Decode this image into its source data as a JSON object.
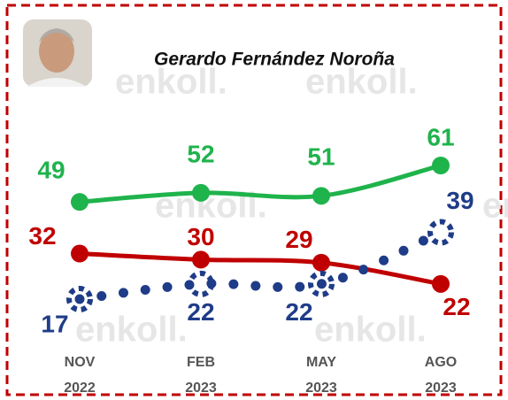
{
  "chart_data": {
    "type": "line",
    "title": "Gerardo Fernández Noroña",
    "watermark": "enkoll.",
    "categories": [
      [
        "NOV",
        "2022"
      ],
      [
        "FEB",
        "2023"
      ],
      [
        "MAY",
        "2023"
      ],
      [
        "AGO",
        "2023"
      ]
    ],
    "series": [
      {
        "color": "#1fb34c",
        "values": [
          49,
          52,
          51,
          61
        ],
        "style": "solid"
      },
      {
        "color": "#c00000",
        "values": [
          32,
          30,
          29,
          22
        ],
        "style": "solid"
      },
      {
        "color": "#1f3c88",
        "values": [
          17,
          22,
          22,
          39
        ],
        "style": "dotted"
      }
    ]
  }
}
